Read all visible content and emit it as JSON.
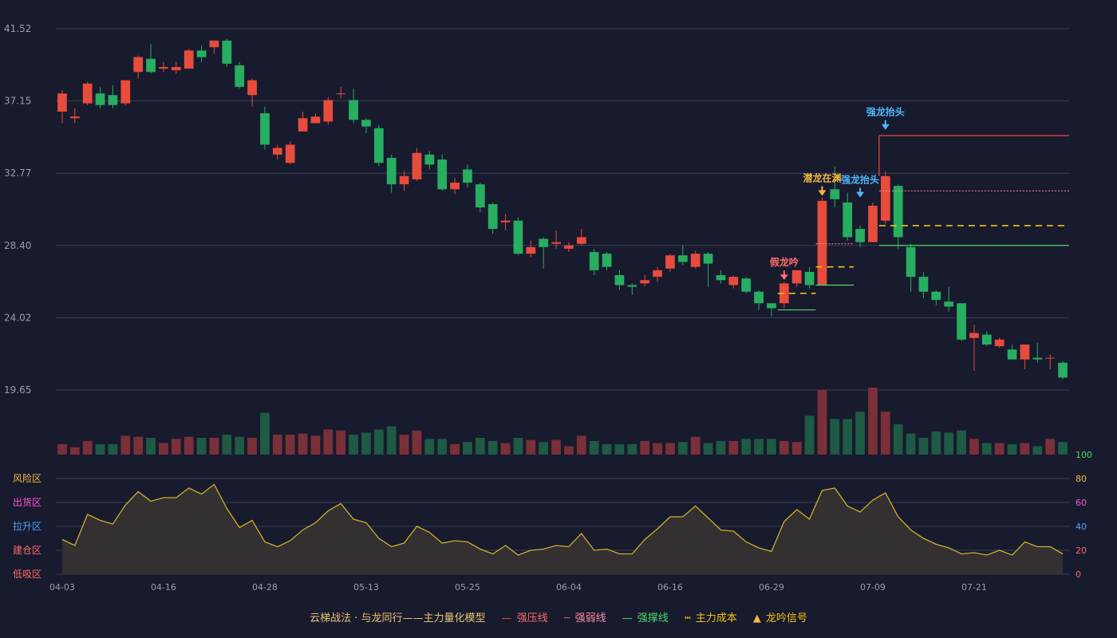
{
  "chart_data": {
    "type": "candlestick",
    "price_axis": {
      "ticks": [
        19.65,
        24.02,
        28.4,
        32.77,
        37.15,
        41.52
      ],
      "ylim": [
        19.65,
        41.52
      ]
    },
    "x_labels": [
      "04-03",
      "04-16",
      "04-28",
      "05-13",
      "05-25",
      "06-04",
      "06-16",
      "06-29",
      "07-09",
      "07-21"
    ],
    "x_label_index": [
      0,
      8,
      16,
      24,
      32,
      40,
      48,
      56,
      64,
      72
    ],
    "candles": [
      [
        36.5,
        37.6,
        37.8,
        35.8
      ],
      [
        36.1,
        36.2,
        36.7,
        35.8
      ],
      [
        37.0,
        38.2,
        38.3,
        36.9
      ],
      [
        37.6,
        36.9,
        38.0,
        36.7
      ],
      [
        37.5,
        36.9,
        38.1,
        36.7
      ],
      [
        37.0,
        38.4,
        38.4,
        36.9
      ],
      [
        38.9,
        39.8,
        39.9,
        38.5
      ],
      [
        39.7,
        38.9,
        40.6,
        38.8
      ],
      [
        39.1,
        39.2,
        39.5,
        38.9
      ],
      [
        39.0,
        39.2,
        39.5,
        38.8
      ],
      [
        39.1,
        40.2,
        40.3,
        39.1
      ],
      [
        40.2,
        39.8,
        40.5,
        39.5
      ],
      [
        40.4,
        40.8,
        40.8,
        40.0
      ],
      [
        40.8,
        39.4,
        40.9,
        39.2
      ],
      [
        39.3,
        38.0,
        39.5,
        37.9
      ],
      [
        37.5,
        38.4,
        38.5,
        36.8
      ],
      [
        36.4,
        34.5,
        36.8,
        34.2
      ],
      [
        33.9,
        34.3,
        34.5,
        33.6
      ],
      [
        33.4,
        34.5,
        34.7,
        33.3
      ],
      [
        35.3,
        36.1,
        36.5,
        35.3
      ],
      [
        35.8,
        36.2,
        36.4,
        35.9
      ],
      [
        35.9,
        37.2,
        37.4,
        35.7
      ],
      [
        37.6,
        37.6,
        38.0,
        37.3
      ],
      [
        37.2,
        36.0,
        37.9,
        35.8
      ],
      [
        36.0,
        35.6,
        36.1,
        35.2
      ],
      [
        35.5,
        33.4,
        35.7,
        33.2
      ],
      [
        33.7,
        32.1,
        33.9,
        31.6
      ],
      [
        32.1,
        32.6,
        32.9,
        31.7
      ],
      [
        32.4,
        34.0,
        34.3,
        32.3
      ],
      [
        33.9,
        33.3,
        34.1,
        33.0
      ],
      [
        33.6,
        31.8,
        33.9,
        31.7
      ],
      [
        31.8,
        32.2,
        32.5,
        31.5
      ],
      [
        33.0,
        32.2,
        33.3,
        31.9
      ],
      [
        32.1,
        30.7,
        32.2,
        30.4
      ],
      [
        30.9,
        29.4,
        31.0,
        29.1
      ],
      [
        29.8,
        29.9,
        30.3,
        29.3
      ],
      [
        29.9,
        27.9,
        30.1,
        27.8
      ],
      [
        27.9,
        28.3,
        28.7,
        27.7
      ],
      [
        28.8,
        28.3,
        28.9,
        27.0
      ],
      [
        28.5,
        28.6,
        29.3,
        28.2
      ],
      [
        28.2,
        28.4,
        28.6,
        28.0
      ],
      [
        28.5,
        28.9,
        29.4,
        28.4
      ],
      [
        28.0,
        26.9,
        28.2,
        26.6
      ],
      [
        27.9,
        27.1,
        28.0,
        26.9
      ],
      [
        26.6,
        26.0,
        26.9,
        25.7
      ],
      [
        26.0,
        25.9,
        26.1,
        25.4
      ],
      [
        26.1,
        26.3,
        26.6,
        25.9
      ],
      [
        26.5,
        26.9,
        27.1,
        26.2
      ],
      [
        27.0,
        27.8,
        27.9,
        26.8
      ],
      [
        27.8,
        27.4,
        28.4,
        27.2
      ],
      [
        27.1,
        27.9,
        28.1,
        27.0
      ],
      [
        27.9,
        27.3,
        28.0,
        25.9
      ],
      [
        26.6,
        26.3,
        26.9,
        26.1
      ],
      [
        26.0,
        26.5,
        26.6,
        25.8
      ],
      [
        26.4,
        25.6,
        26.5,
        25.5
      ],
      [
        25.6,
        24.9,
        25.7,
        24.5
      ],
      [
        24.9,
        24.6,
        24.9,
        24.1
      ],
      [
        24.9,
        26.1,
        26.2,
        24.6
      ],
      [
        26.1,
        26.9,
        26.9,
        25.9
      ],
      [
        26.8,
        26.0,
        27.1,
        25.8
      ],
      [
        26.0,
        31.1,
        31.3,
        26.0
      ],
      [
        31.8,
        31.2,
        33.2,
        30.7
      ],
      [
        31.0,
        28.9,
        31.6,
        28.7
      ],
      [
        29.4,
        28.6,
        29.6,
        28.3
      ],
      [
        28.6,
        30.8,
        31.0,
        28.6
      ],
      [
        29.9,
        32.6,
        32.9,
        29.7
      ],
      [
        32.0,
        28.9,
        32.1,
        28.2
      ],
      [
        28.3,
        26.5,
        28.5,
        25.6
      ],
      [
        26.5,
        25.6,
        26.8,
        25.2
      ],
      [
        25.6,
        25.1,
        25.7,
        24.8
      ],
      [
        25.0,
        24.7,
        25.9,
        24.4
      ],
      [
        24.9,
        22.7,
        24.9,
        22.6
      ],
      [
        22.8,
        23.1,
        23.6,
        20.8
      ],
      [
        23.0,
        22.4,
        23.2,
        22.3
      ],
      [
        22.3,
        22.7,
        22.8,
        22.2
      ],
      [
        22.1,
        21.5,
        22.4,
        21.5
      ],
      [
        21.5,
        22.4,
        22.4,
        20.9
      ],
      [
        21.6,
        21.5,
        22.5,
        21.3
      ],
      [
        21.6,
        21.6,
        21.8,
        20.9
      ],
      [
        21.3,
        20.4,
        21.4,
        20.3
      ]
    ],
    "volume": [
      10,
      7,
      13,
      10,
      10,
      18,
      17,
      16,
      11,
      15,
      17,
      16,
      16,
      19,
      17,
      16,
      40,
      19,
      19,
      20,
      18,
      24,
      23,
      19,
      21,
      24,
      27,
      19,
      23,
      15,
      15,
      10,
      12,
      16,
      13,
      11,
      16,
      14,
      12,
      14,
      8,
      18,
      13,
      10,
      10,
      10,
      13,
      11,
      11,
      12,
      17,
      11,
      13,
      13,
      15,
      15,
      15,
      13,
      12,
      37,
      62,
      34,
      34,
      41,
      64,
      41,
      29,
      20,
      16,
      22,
      21,
      23,
      15,
      11,
      11,
      10,
      11,
      8,
      15,
      12
    ],
    "volume_mark": "100",
    "indicator": {
      "ylim": [
        0,
        100
      ],
      "ticks": [
        0,
        20,
        40,
        60,
        80,
        100
      ],
      "zones": [
        "风险区",
        "出货区",
        "拉升区",
        "建仓区",
        "低吸区"
      ],
      "values": [
        29,
        24,
        50,
        45,
        42,
        58,
        69,
        61,
        64,
        64,
        72,
        67,
        75,
        55,
        39,
        45,
        27,
        23,
        28,
        37,
        43,
        53,
        59,
        46,
        43,
        30,
        23,
        26,
        40,
        35,
        26,
        28,
        27,
        21,
        17,
        24,
        16,
        20,
        21,
        24,
        23,
        34,
        20,
        21,
        17,
        17,
        29,
        38,
        48,
        48,
        57,
        47,
        37,
        36,
        27,
        22,
        19,
        44,
        54,
        46,
        70,
        72,
        57,
        52,
        62,
        68,
        48,
        37,
        30,
        25,
        22,
        17,
        18,
        16,
        20,
        16,
        27,
        23,
        23,
        17
      ]
    },
    "annotations": {
      "dragon_fake": {
        "label": "假龙吟",
        "index": 57,
        "price": 26.4
      },
      "dragon_hidden": {
        "label": "潜龙在渊",
        "index": 60,
        "price": 31.5
      },
      "dragon_raise_1": {
        "label": "强龙抬头",
        "index": 63,
        "price": 31.4
      },
      "dragon_raise_2": {
        "label": "强龙抬头",
        "index": 65,
        "price": 35.5
      }
    },
    "overlay_lines": {
      "pressure_line": {
        "from_index": 65,
        "price": 35.05
      },
      "weak_pressure": {
        "from_index": 65,
        "price": 31.7
      },
      "weak_pressure_short": {
        "from_index": 60,
        "to_index": 62,
        "price": 28.5
      },
      "support_line": {
        "from_index": 65,
        "price": 28.4
      },
      "support_short_1": {
        "from_index": 57,
        "to_index": 59,
        "price": 24.5
      },
      "support_short_2": {
        "from_index": 60,
        "to_index": 62,
        "price": 26.0
      },
      "main_cost": {
        "from_index": 65,
        "price": 29.6
      },
      "main_cost_short_1": {
        "from_index": 57,
        "to_index": 59,
        "price": 25.5
      },
      "main_cost_short_2": {
        "from_index": 60,
        "to_index": 62,
        "price": 27.1
      }
    },
    "legend": {
      "title": "云梯战法 · 与龙同行——主力量化模型",
      "items": [
        "强压线",
        "强弱线",
        "强撑线",
        "主力成本",
        "龙吟信号"
      ]
    },
    "colors": {
      "background": "#181a2e",
      "up": "#e74c3c",
      "down": "#27ae60",
      "volume_up": "#7a3038",
      "volume_down": "#1e5a44",
      "pressure": "#e74c3c",
      "weak": "#ff8aa0",
      "support": "#4cd964",
      "cost": "#f1c40f",
      "signal_gold": "#f5b83d",
      "signal_blue": "#4db8ff",
      "signal_red": "#ff6b6b",
      "indicator_line": "#c9b02a",
      "grid": "#3a3d55",
      "axis_text": "#9a9cb0",
      "zone_risk": "#f5b83d",
      "zone_sell": "#ff55d4",
      "zone_rise": "#4da3ff",
      "zone_build": "#ff6b6b",
      "zone_dip": "#ff6b6b"
    }
  }
}
